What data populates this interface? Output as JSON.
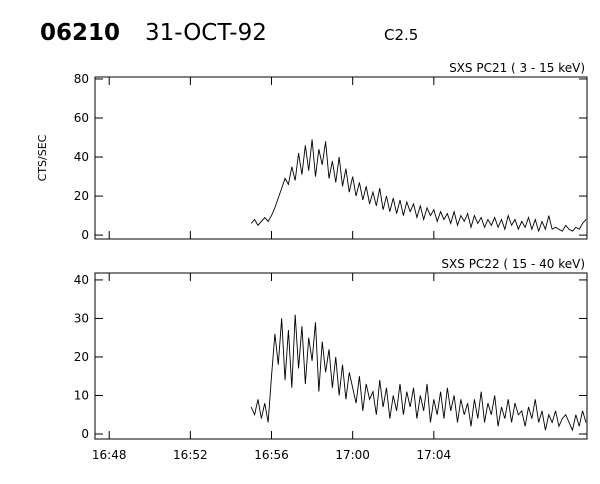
{
  "header": {
    "id": "06210",
    "date": "31-OCT-92",
    "class": "C2.5"
  },
  "chart_data": [
    {
      "type": "line",
      "title": "SXS PC21  (  3 - 15 keV)",
      "y_label": "CTS/SEC",
      "color": "#000000",
      "xlim": [
        "16:47:18",
        "17:11:33"
      ],
      "ylim": [
        -2,
        81
      ],
      "yticks": [
        0,
        20,
        40,
        60,
        80
      ],
      "x": [
        "16:55:00",
        "16:55:10",
        "16:55:20",
        "16:55:30",
        "16:55:40",
        "16:55:50",
        "16:56:00",
        "16:56:10",
        "16:56:20",
        "16:56:30",
        "16:56:40",
        "16:56:50",
        "16:57:00",
        "16:57:10",
        "16:57:20",
        "16:57:30",
        "16:57:40",
        "16:57:50",
        "16:58:00",
        "16:58:10",
        "16:58:20",
        "16:58:30",
        "16:58:40",
        "16:58:50",
        "16:59:00",
        "16:59:10",
        "16:59:20",
        "16:59:30",
        "16:59:40",
        "16:59:50",
        "17:00:00",
        "17:00:10",
        "17:00:20",
        "17:00:30",
        "17:00:40",
        "17:00:50",
        "17:01:00",
        "17:01:10",
        "17:01:20",
        "17:01:30",
        "17:01:40",
        "17:01:50",
        "17:02:00",
        "17:02:10",
        "17:02:20",
        "17:02:30",
        "17:02:40",
        "17:02:50",
        "17:03:00",
        "17:03:10",
        "17:03:20",
        "17:03:30",
        "17:03:40",
        "17:03:50",
        "17:04:00",
        "17:04:10",
        "17:04:20",
        "17:04:30",
        "17:04:40",
        "17:04:50",
        "17:05:00",
        "17:05:10",
        "17:05:20",
        "17:05:30",
        "17:05:40",
        "17:05:50",
        "17:06:00",
        "17:06:10",
        "17:06:20",
        "17:06:30",
        "17:06:40",
        "17:06:50",
        "17:07:00",
        "17:07:10",
        "17:07:20",
        "17:07:30",
        "17:07:40",
        "17:07:50",
        "17:08:00",
        "17:08:10",
        "17:08:20",
        "17:08:30",
        "17:08:40",
        "17:08:50",
        "17:09:00",
        "17:09:10",
        "17:09:20",
        "17:09:30",
        "17:09:40",
        "17:09:50",
        "17:10:00",
        "17:10:10",
        "17:10:20",
        "17:10:30",
        "17:10:40",
        "17:10:50",
        "17:11:00",
        "17:11:10",
        "17:11:20",
        "17:11:30"
      ],
      "values": [
        6,
        8,
        5,
        7,
        9,
        7,
        10,
        14,
        19,
        24,
        29,
        26,
        35,
        28,
        42,
        31,
        46,
        33,
        49,
        30,
        44,
        36,
        48,
        29,
        38,
        27,
        40,
        25,
        34,
        22,
        30,
        20,
        27,
        18,
        25,
        16,
        22,
        15,
        24,
        13,
        20,
        12,
        19,
        11,
        18,
        10,
        17,
        12,
        16,
        9,
        15,
        8,
        14,
        10,
        13,
        7,
        12,
        8,
        11,
        6,
        12,
        5,
        10,
        7,
        11,
        4,
        10,
        6,
        9,
        4,
        8,
        5,
        9,
        4,
        8,
        3,
        10,
        5,
        8,
        3,
        7,
        4,
        9,
        3,
        8,
        2,
        7,
        3,
        10,
        3,
        4,
        3,
        2,
        5,
        3,
        2,
        4,
        3,
        6,
        8
      ]
    },
    {
      "type": "line",
      "title": "SXS PC22  ( 15 - 40 keV)",
      "color": "#000000",
      "xlim": [
        "16:47:18",
        "17:11:33"
      ],
      "ylim": [
        -1.3,
        41.8
      ],
      "yticks": [
        0,
        10,
        20,
        30,
        40
      ],
      "xticks": [
        "16:48",
        "16:52",
        "16:56",
        "17:00",
        "17:04"
      ],
      "x": [
        "16:55:00",
        "16:55:10",
        "16:55:20",
        "16:55:30",
        "16:55:40",
        "16:55:50",
        "16:56:00",
        "16:56:10",
        "16:56:20",
        "16:56:30",
        "16:56:40",
        "16:56:50",
        "16:57:00",
        "16:57:10",
        "16:57:20",
        "16:57:30",
        "16:57:40",
        "16:57:50",
        "16:58:00",
        "16:58:10",
        "16:58:20",
        "16:58:30",
        "16:58:40",
        "16:58:50",
        "16:59:00",
        "16:59:10",
        "16:59:20",
        "16:59:30",
        "16:59:40",
        "16:59:50",
        "17:00:00",
        "17:00:10",
        "17:00:20",
        "17:00:30",
        "17:00:40",
        "17:00:50",
        "17:01:00",
        "17:01:10",
        "17:01:20",
        "17:01:30",
        "17:01:40",
        "17:01:50",
        "17:02:00",
        "17:02:10",
        "17:02:20",
        "17:02:30",
        "17:02:40",
        "17:02:50",
        "17:03:00",
        "17:03:10",
        "17:03:20",
        "17:03:30",
        "17:03:40",
        "17:03:50",
        "17:04:00",
        "17:04:10",
        "17:04:20",
        "17:04:30",
        "17:04:40",
        "17:04:50",
        "17:05:00",
        "17:05:10",
        "17:05:20",
        "17:05:30",
        "17:05:40",
        "17:05:50",
        "17:06:00",
        "17:06:10",
        "17:06:20",
        "17:06:30",
        "17:06:40",
        "17:06:50",
        "17:07:00",
        "17:07:10",
        "17:07:20",
        "17:07:30",
        "17:07:40",
        "17:07:50",
        "17:08:00",
        "17:08:10",
        "17:08:20",
        "17:08:30",
        "17:08:40",
        "17:08:50",
        "17:09:00",
        "17:09:10",
        "17:09:20",
        "17:09:30",
        "17:09:40",
        "17:09:50",
        "17:10:00",
        "17:10:10",
        "17:10:20",
        "17:10:30",
        "17:10:40",
        "17:10:50",
        "17:11:00",
        "17:11:10",
        "17:11:20",
        "17:11:30"
      ],
      "values": [
        7,
        5,
        9,
        4,
        8,
        3,
        15,
        26,
        18,
        30,
        14,
        27,
        12,
        31,
        17,
        28,
        13,
        25,
        19,
        29,
        11,
        24,
        16,
        22,
        12,
        20,
        10,
        18,
        9,
        16,
        12,
        8,
        15,
        6,
        13,
        9,
        11,
        5,
        14,
        7,
        12,
        4,
        10,
        6,
        13,
        5,
        11,
        7,
        12,
        4,
        10,
        6,
        13,
        3,
        9,
        5,
        11,
        4,
        12,
        6,
        10,
        3,
        9,
        5,
        8,
        2,
        9,
        4,
        11,
        3,
        8,
        5,
        10,
        2,
        7,
        4,
        9,
        3,
        8,
        5,
        6,
        2,
        7,
        4,
        9,
        3,
        6,
        1,
        5,
        3,
        6,
        2,
        4,
        5,
        3,
        1,
        5,
        2,
        6,
        3
      ]
    }
  ]
}
